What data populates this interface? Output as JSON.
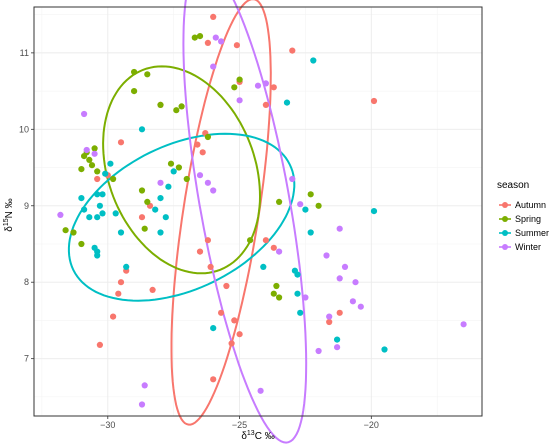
{
  "chart_data": {
    "type": "scatter",
    "title": "",
    "xlabel": "δ13C ‰",
    "ylabel": "δ15N ‰",
    "xlabel_parts": {
      "pre": "δ",
      "sup": "13",
      "post": "C ‰"
    },
    "ylabel_parts": {
      "pre": "δ",
      "sup": "15",
      "post": "N ‰"
    },
    "xlim": [
      -32.8,
      -15.8
    ],
    "ylim": [
      6.25,
      11.6
    ],
    "xticks": [
      -30,
      -25,
      -20
    ],
    "yticks": [
      7,
      8,
      9,
      10,
      11
    ],
    "xtick_labels": [
      "−30",
      "−25",
      "−20"
    ],
    "ytick_labels": [
      "7",
      "8",
      "9",
      "10",
      "11"
    ],
    "grid": true,
    "legend": {
      "title": "season",
      "placement": "right",
      "entries": [
        "Autumn",
        "Spring",
        "Summer",
        "Winter"
      ]
    },
    "series": [
      {
        "name": "Autumn",
        "color": "#F8766D",
        "ellipse": {
          "cx": -25.7,
          "cy": 8.92,
          "rx": 3.1,
          "ry": 1.3,
          "angle": 61
        },
        "points": [
          [
            -26.0,
            11.47
          ],
          [
            -26.2,
            11.13
          ],
          [
            -25.1,
            11.1
          ],
          [
            -23.0,
            11.03
          ],
          [
            -25.0,
            10.62
          ],
          [
            -23.7,
            10.55
          ],
          [
            -24.0,
            10.32
          ],
          [
            -19.9,
            10.37
          ],
          [
            -28.0,
            10.32
          ],
          [
            -26.3,
            9.95
          ],
          [
            -26.6,
            9.8
          ],
          [
            -26.4,
            9.7
          ],
          [
            -29.5,
            9.83
          ],
          [
            -30.4,
            9.35
          ],
          [
            -30.0,
            9.4
          ],
          [
            -28.4,
            9.0
          ],
          [
            -28.7,
            8.85
          ],
          [
            -26.2,
            8.55
          ],
          [
            -26.5,
            8.4
          ],
          [
            -26.1,
            8.2
          ],
          [
            -29.5,
            8.0
          ],
          [
            -29.6,
            7.85
          ],
          [
            -29.3,
            8.15
          ],
          [
            -28.3,
            7.9
          ],
          [
            -25.5,
            7.95
          ],
          [
            -24.0,
            8.55
          ],
          [
            -23.7,
            8.45
          ],
          [
            -21.2,
            7.6
          ],
          [
            -21.6,
            7.48
          ],
          [
            -25.7,
            7.6
          ],
          [
            -25.2,
            7.5
          ],
          [
            -25.3,
            7.2
          ],
          [
            -25.0,
            7.32
          ],
          [
            -29.8,
            7.55
          ],
          [
            -30.3,
            7.18
          ],
          [
            -26.0,
            6.73
          ]
        ]
      },
      {
        "name": "Spring",
        "color": "#7CAE00",
        "ellipse": {
          "cx": -27.2,
          "cy": 9.47,
          "rx": 3.0,
          "ry": 1.3,
          "angle": -8
        },
        "points": [
          [
            -26.5,
            11.22
          ],
          [
            -26.7,
            11.2
          ],
          [
            -25.0,
            10.65
          ],
          [
            -25.2,
            10.55
          ],
          [
            -29.0,
            10.75
          ],
          [
            -28.5,
            10.72
          ],
          [
            -29.0,
            10.5
          ],
          [
            -28.0,
            10.32
          ],
          [
            -27.2,
            10.3
          ],
          [
            -27.4,
            10.25
          ],
          [
            -26.2,
            9.9
          ],
          [
            -30.5,
            9.75
          ],
          [
            -30.8,
            9.7
          ],
          [
            -30.9,
            9.65
          ],
          [
            -30.7,
            9.6
          ],
          [
            -30.6,
            9.53
          ],
          [
            -31.0,
            9.48
          ],
          [
            -30.4,
            9.45
          ],
          [
            -29.8,
            9.35
          ],
          [
            -27.6,
            9.55
          ],
          [
            -27.3,
            9.5
          ],
          [
            -27.0,
            9.35
          ],
          [
            -28.7,
            9.2
          ],
          [
            -28.5,
            9.05
          ],
          [
            -28.6,
            8.7
          ],
          [
            -31.6,
            8.68
          ],
          [
            -31.3,
            8.65
          ],
          [
            -31.0,
            8.5
          ],
          [
            -23.5,
            9.05
          ],
          [
            -22.0,
            9.0
          ],
          [
            -22.3,
            9.15
          ],
          [
            -24.6,
            8.55
          ],
          [
            -23.6,
            7.95
          ],
          [
            -23.7,
            7.85
          ],
          [
            -23.5,
            7.8
          ]
        ]
      },
      {
        "name": "Summer",
        "color": "#00BFC4",
        "ellipse": {
          "cx": -27.2,
          "cy": 8.85,
          "rx": 4.3,
          "ry": 1.0,
          "angle": 6
        },
        "points": [
          [
            -22.2,
            10.9
          ],
          [
            -23.2,
            10.35
          ],
          [
            -28.7,
            10.0
          ],
          [
            -29.9,
            9.55
          ],
          [
            -30.1,
            9.42
          ],
          [
            -31.0,
            9.1
          ],
          [
            -30.4,
            9.15
          ],
          [
            -30.2,
            9.15
          ],
          [
            -30.3,
            9.0
          ],
          [
            -30.2,
            8.9
          ],
          [
            -30.4,
            8.85
          ],
          [
            -30.7,
            8.85
          ],
          [
            -30.9,
            8.95
          ],
          [
            -29.7,
            8.9
          ],
          [
            -28.0,
            9.1
          ],
          [
            -27.7,
            9.25
          ],
          [
            -27.5,
            9.45
          ],
          [
            -27.8,
            8.85
          ],
          [
            -28.2,
            8.95
          ],
          [
            -28.0,
            8.65
          ],
          [
            -29.5,
            8.65
          ],
          [
            -29.3,
            8.2
          ],
          [
            -30.4,
            8.4
          ],
          [
            -30.5,
            8.45
          ],
          [
            -30.4,
            8.35
          ],
          [
            -22.5,
            8.95
          ],
          [
            -22.3,
            8.65
          ],
          [
            -22.9,
            8.15
          ],
          [
            -22.8,
            8.1
          ],
          [
            -24.1,
            8.2
          ],
          [
            -26.0,
            7.4
          ],
          [
            -22.8,
            7.85
          ],
          [
            -22.7,
            7.6
          ],
          [
            -19.9,
            8.93
          ],
          [
            -21.3,
            7.25
          ],
          [
            -19.5,
            7.12
          ]
        ]
      },
      {
        "name": "Winter",
        "color": "#C77CFF",
        "ellipse": {
          "cx": -24.8,
          "cy": 9.03,
          "rx": 3.6,
          "ry": 1.5,
          "angle": -57
        },
        "points": [
          [
            -25.9,
            11.2
          ],
          [
            -25.7,
            11.15
          ],
          [
            -26.0,
            10.82
          ],
          [
            -25.0,
            10.38
          ],
          [
            -24.3,
            10.57
          ],
          [
            -24.0,
            10.6
          ],
          [
            -30.9,
            10.2
          ],
          [
            -31.8,
            8.88
          ],
          [
            -30.8,
            9.73
          ],
          [
            -30.5,
            9.68
          ],
          [
            -26.5,
            9.4
          ],
          [
            -26.2,
            9.3
          ],
          [
            -26.0,
            9.2
          ],
          [
            -28.0,
            9.3
          ],
          [
            -23.0,
            9.35
          ],
          [
            -22.7,
            9.02
          ],
          [
            -23.5,
            8.4
          ],
          [
            -21.2,
            8.7
          ],
          [
            -21.7,
            8.35
          ],
          [
            -21.0,
            8.2
          ],
          [
            -21.2,
            8.05
          ],
          [
            -20.6,
            8.0
          ],
          [
            -20.7,
            7.75
          ],
          [
            -20.4,
            7.68
          ],
          [
            -22.5,
            7.8
          ],
          [
            -21.6,
            7.55
          ],
          [
            -21.3,
            7.15
          ],
          [
            -16.5,
            7.45
          ],
          [
            -22.0,
            7.1
          ],
          [
            -28.6,
            6.65
          ],
          [
            -28.7,
            6.4
          ],
          [
            -24.2,
            6.58
          ]
        ]
      }
    ]
  }
}
